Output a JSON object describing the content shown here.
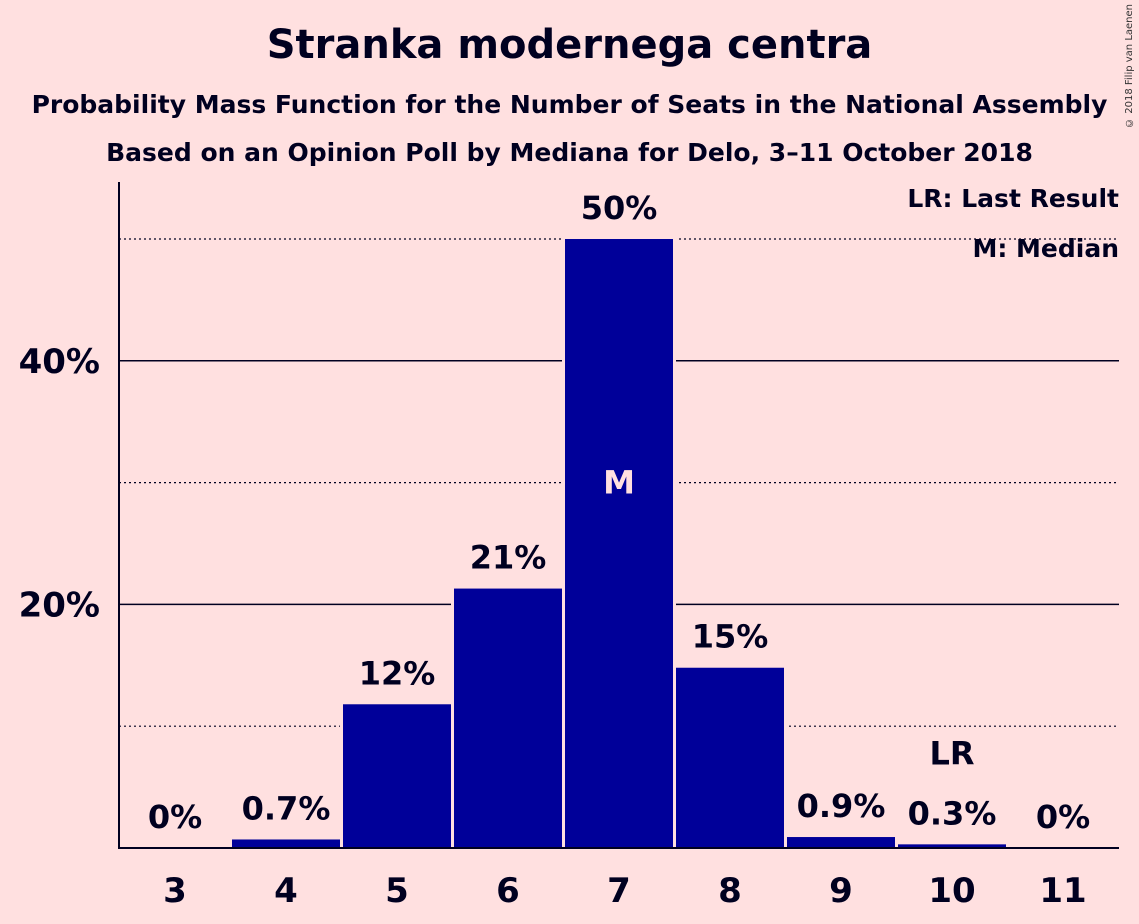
{
  "chart_data": {
    "type": "bar",
    "title": "Stranka modernega centra",
    "subtitle": "Probability Mass Function for the Number of Seats in the National Assembly",
    "subtitle2": "Based on an Opinion Poll by Mediana for Delo, 3–11 October 2018",
    "copyright": "© 2018 Filip van Laenen",
    "categories": [
      "3",
      "4",
      "5",
      "6",
      "7",
      "8",
      "9",
      "10",
      "11"
    ],
    "values": [
      0,
      0.7,
      11.8,
      21.3,
      50.0,
      14.8,
      0.9,
      0.3,
      0
    ],
    "value_labels": [
      "0%",
      "0.7%",
      "12%",
      "21%",
      "50%",
      "15%",
      "0.9%",
      "0.3%",
      "0%"
    ],
    "ylim": [
      0,
      55
    ],
    "y_ticks": [
      {
        "value": 20,
        "label": "20%"
      },
      {
        "value": 40,
        "label": "40%"
      }
    ],
    "minor_gridlines": [
      10,
      30,
      50
    ],
    "median": {
      "category": "7",
      "label": "M"
    },
    "last_result": {
      "category": "10",
      "label": "LR"
    },
    "legend": [
      "LR: Last Result",
      "M: Median"
    ],
    "bar_color": "#000099",
    "background_color": "#FFE0E0"
  }
}
